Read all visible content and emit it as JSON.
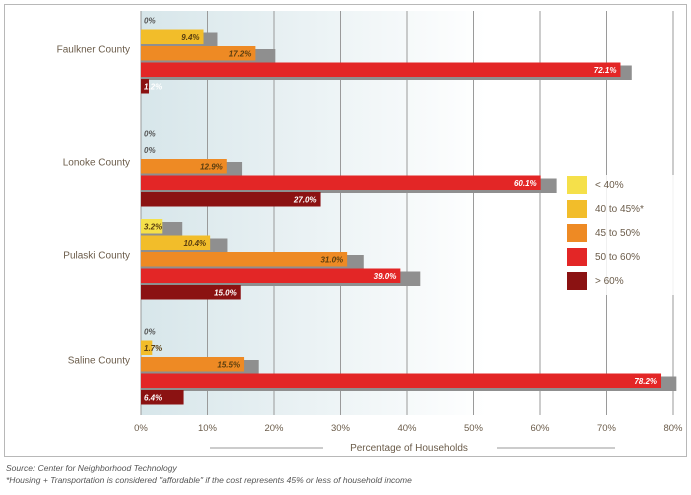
{
  "chart_data": {
    "type": "bar",
    "orientation": "horizontal",
    "categories": [
      "Faulkner County",
      "Lonoke County",
      "Pulaski County",
      "Saline County"
    ],
    "series": [
      {
        "name": "< 40%",
        "color": "#f5e04a",
        "values": [
          0,
          0,
          3.2,
          0
        ],
        "labels": [
          "0%",
          "0%",
          "3.2%",
          "0%"
        ]
      },
      {
        "name": "40 to 45%*",
        "color": "#f2bd2a",
        "values": [
          9.4,
          0,
          10.4,
          1.7
        ],
        "labels": [
          "9.4%",
          "0%",
          "10.4%",
          "1.7%"
        ]
      },
      {
        "name": "45 to 50%",
        "color": "#ee8a24",
        "values": [
          17.2,
          12.9,
          31.0,
          15.5
        ],
        "labels": [
          "17.2%",
          "12.9%",
          "31.0%",
          "15.5%"
        ]
      },
      {
        "name": "50 to 60%",
        "color": "#e32626",
        "values": [
          72.1,
          60.1,
          39.0,
          78.2
        ],
        "labels": [
          "72.1%",
          "60.1%",
          "39.0%",
          "78.2%"
        ]
      },
      {
        "name": "> 60%",
        "color": "#8b1212",
        "values": [
          1.2,
          27.0,
          15.0,
          6.4
        ],
        "labels": [
          "1.2%",
          "27.0%",
          "15.0%",
          "6.4%"
        ]
      }
    ],
    "cumulative": [
      [
        0,
        11.5,
        20.2,
        73.8,
        0
      ],
      [
        0,
        0,
        15.2,
        62.5,
        0
      ],
      [
        6.2,
        13,
        33.5,
        42.0,
        0
      ],
      [
        0,
        0,
        17.7,
        80.5,
        0
      ]
    ],
    "xticks": [
      "0%",
      "10%",
      "20%",
      "30%",
      "40%",
      "50%",
      "60%",
      "70%",
      "80%"
    ],
    "xlim": [
      0,
      80
    ],
    "xlabel": "Percentage of Households",
    "grid": true,
    "legend": "right"
  },
  "footer": {
    "source": "Source: Center for Neighborhood Technology",
    "note": "*Housing + Transportation is considered \"affordable\" if the cost represents 45% or less of household income"
  },
  "colors": {
    "bar_background": "#8f8f8f",
    "plot_gradient_start": "#d7e6ea",
    "plot_gradient_end": "#ffffff"
  }
}
